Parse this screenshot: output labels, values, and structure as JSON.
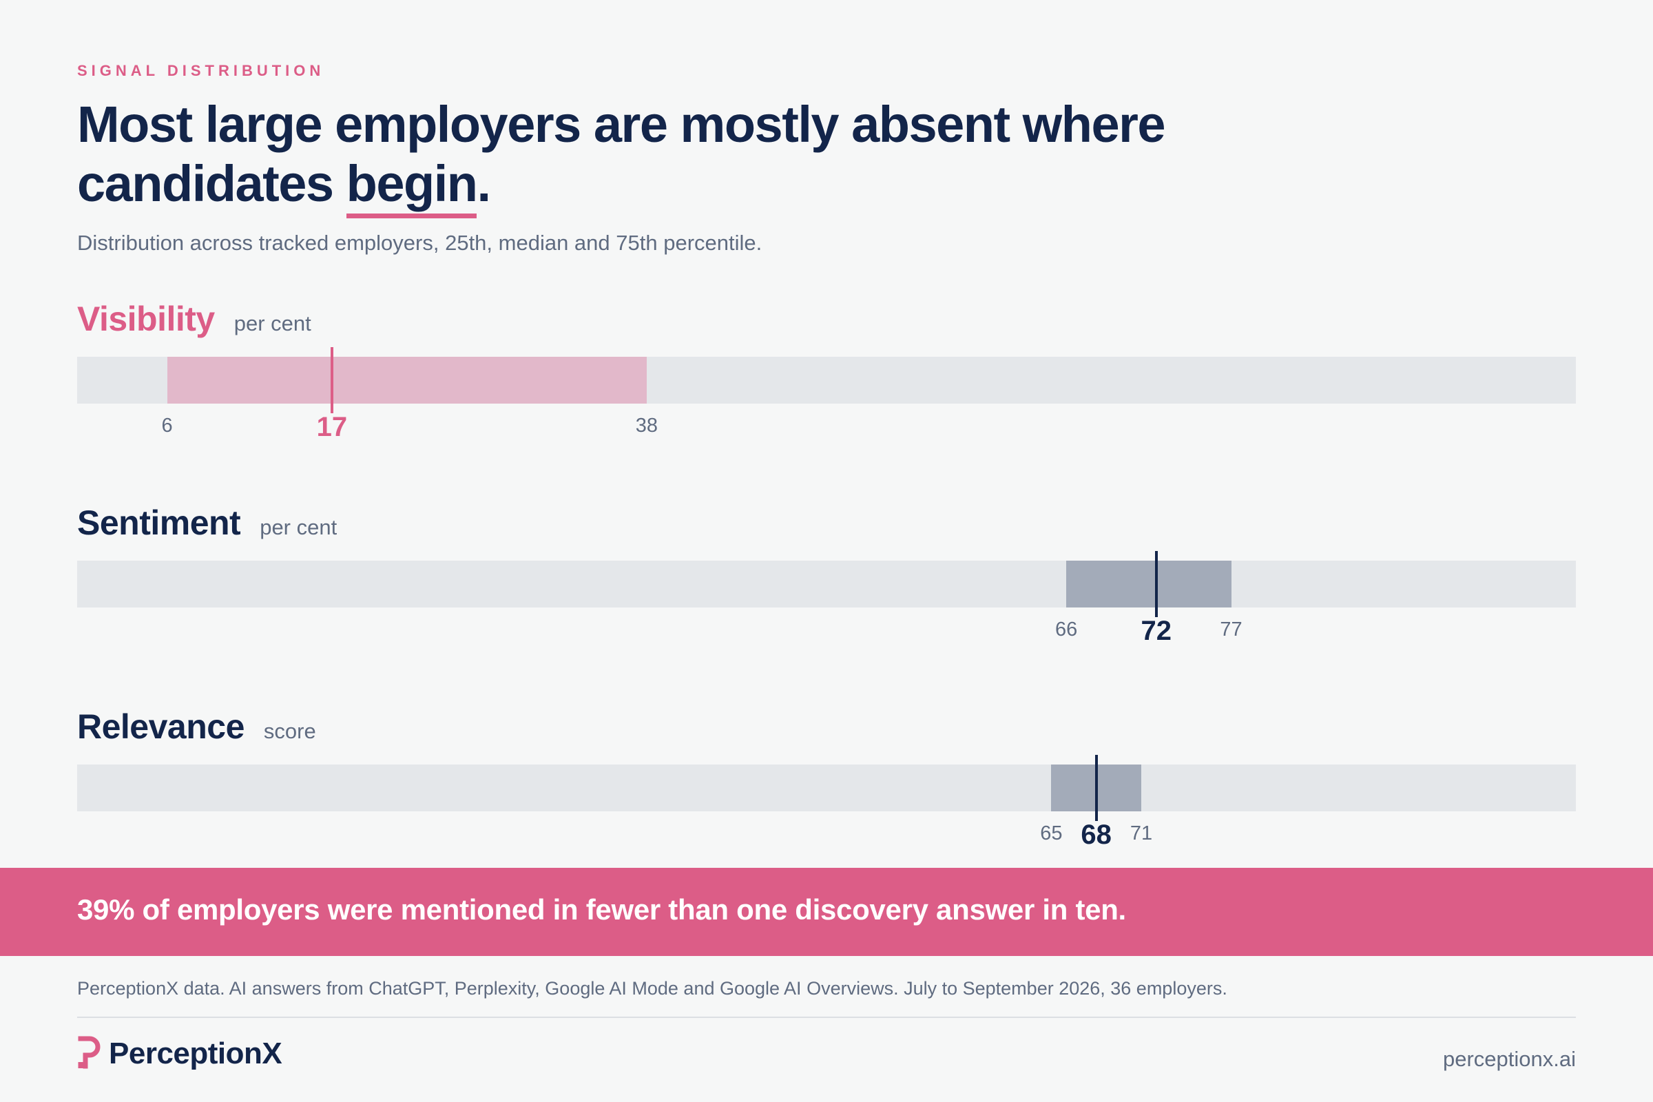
{
  "eyebrow": "SIGNAL DISTRIBUTION",
  "headline": {
    "line1": "Most large employers are mostly absent where",
    "line2_pre": "candidates ",
    "line2_underlined": "begin",
    "line2_post": "."
  },
  "subtitle": "Distribution across tracked employers, 25th, median and 75th percentile.",
  "colors": {
    "accent": "#dc5d87",
    "navy": "#13254a",
    "visibility_band": "#e2b8ca",
    "neutral_band": "#a3abb9",
    "track": "#e4e7ea"
  },
  "chart_data": [
    {
      "type": "bar",
      "title": "Visibility",
      "unit": "per cent",
      "p25": 6,
      "median": 17,
      "p75": 38,
      "xlim": [
        0,
        100
      ],
      "highlight": true
    },
    {
      "type": "bar",
      "title": "Sentiment",
      "unit": "per cent",
      "p25": 66,
      "median": 72,
      "p75": 77,
      "xlim": [
        0,
        100
      ],
      "highlight": false
    },
    {
      "type": "bar",
      "title": "Relevance",
      "unit": "score",
      "p25": 65,
      "median": 68,
      "p75": 71,
      "xlim": [
        0,
        100
      ],
      "highlight": false
    }
  ],
  "banner": "39% of employers were mentioned in fewer than one discovery answer in ten.",
  "source": "PerceptionX data. AI answers from ChatGPT, Perplexity, Google AI Mode and Google AI Overviews. July to September 2026, 36 employers.",
  "brand": {
    "name": "PerceptionX",
    "logo_icon": "perceptionx-logo-icon"
  },
  "website": "perceptionx.ai"
}
